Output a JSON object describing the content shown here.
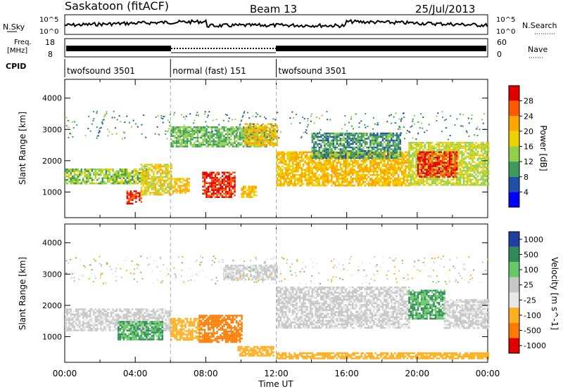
{
  "header": {
    "station": "Saskatoon (fitACF)",
    "beam": "Beam 13",
    "date": "25/Jul/2013"
  },
  "noise_panel": {
    "left_label": "N.Sky",
    "right_label": "N.Search",
    "tick_top": "10^5",
    "tick_bottom": "10^0",
    "tick_top_right": "10^5",
    "tick_bottom_right": "10^0"
  },
  "freq_panel": {
    "left_label_1": "Freq.",
    "left_label_2": "[MHz]",
    "right_label": "Nave",
    "left_ticks": [
      "18",
      "8"
    ],
    "right_ticks": [
      "60",
      "0"
    ]
  },
  "cpid": {
    "label": "CPID",
    "segments": [
      {
        "name": "twofsound 3501",
        "start_hour": 0,
        "end_hour": 6
      },
      {
        "name": "normal (fast) 151",
        "start_hour": 6,
        "end_hour": 12
      },
      {
        "name": "twofsound 3501",
        "start_hour": 12,
        "end_hour": 24
      }
    ]
  },
  "power_panel": {
    "ylabel": "Slant Range [km]",
    "cbar_label": "Power [dB]",
    "cbar_ticks": [
      "28",
      "24",
      "20",
      "16",
      "12",
      "8",
      "4"
    ],
    "cbar_colors": [
      "#e00000",
      "#ff5a00",
      "#ffa500",
      "#f0d000",
      "#8fd24a",
      "#3c9a5a",
      "#1f4fa8",
      "#0000ff"
    ]
  },
  "velocity_panel": {
    "ylabel": "Slant Range [km]",
    "cbar_label": "Velocity [m s^-1]",
    "cbar_ticks": [
      "1000",
      "500",
      "100",
      "25",
      "-25",
      "-100",
      "-500",
      "-1000"
    ],
    "cbar_colors": [
      "#2040a0",
      "#2e8b57",
      "#66c866",
      "#c8c8c8",
      "#e8e8e8",
      "#ffb020",
      "#ff7a00",
      "#e00000"
    ]
  },
  "x_axis": {
    "label": "Time UT",
    "ticks": [
      "00:00",
      "04:00",
      "08:00",
      "12:00",
      "16:00",
      "20:00",
      "00:00"
    ]
  },
  "chart_data": [
    {
      "type": "heatmap",
      "title": "Power",
      "xlabel": "Time UT",
      "ylabel": "Slant Range [km]",
      "x_range_hours": [
        0,
        24
      ],
      "ylim": [
        180,
        4600
      ],
      "y_ticks": [
        1000,
        2000,
        3000,
        4000
      ],
      "color_label": "Power [dB]",
      "color_ticks": [
        4,
        8,
        12,
        16,
        20,
        24,
        28
      ],
      "features": [
        {
          "t0": 0,
          "t1": 4.6,
          "r0": 1250,
          "r1": 1750,
          "value": 12
        },
        {
          "t0": 3.5,
          "t1": 4.3,
          "r0": 650,
          "r1": 1050,
          "value": 26
        },
        {
          "t0": 4.3,
          "t1": 6.0,
          "r0": 900,
          "r1": 1900,
          "value": 16
        },
        {
          "t0": 6.1,
          "t1": 7.0,
          "r0": 950,
          "r1": 1450,
          "value": 18
        },
        {
          "t0": 7.8,
          "t1": 9.6,
          "r0": 850,
          "r1": 1650,
          "value": 26
        },
        {
          "t0": 10.0,
          "t1": 10.8,
          "r0": 850,
          "r1": 1200,
          "value": 18
        },
        {
          "t0": 6.0,
          "t1": 11.8,
          "r0": 2450,
          "r1": 3100,
          "value": 10
        },
        {
          "t0": 10.2,
          "t1": 12.0,
          "r0": 2500,
          "r1": 3200,
          "value": 18
        },
        {
          "t0": 12.0,
          "t1": 19.5,
          "r0": 1200,
          "r1": 2300,
          "value": 18
        },
        {
          "t0": 19.5,
          "t1": 24.0,
          "r0": 1200,
          "r1": 2600,
          "value": 14
        },
        {
          "t0": 20.0,
          "t1": 22.2,
          "r0": 1500,
          "r1": 2300,
          "value": 26
        },
        {
          "t0": 14.0,
          "t1": 19.0,
          "r0": 2100,
          "r1": 2900,
          "value": 8
        }
      ]
    },
    {
      "type": "heatmap",
      "title": "Velocity",
      "xlabel": "Time UT",
      "ylabel": "Slant Range [km]",
      "x_range_hours": [
        0,
        24
      ],
      "ylim": [
        180,
        4600
      ],
      "y_ticks": [
        1000,
        2000,
        3000,
        4000
      ],
      "color_label": "Velocity [m s^-1]",
      "color_ticks": [
        -1000,
        -500,
        -100,
        -25,
        25,
        100,
        500,
        1000
      ],
      "features": [
        {
          "t0": 0,
          "t1": 6.0,
          "r0": 1200,
          "r1": 1900,
          "value": 10
        },
        {
          "t0": 3.0,
          "t1": 5.5,
          "r0": 900,
          "r1": 1500,
          "value": 300
        },
        {
          "t0": 6.0,
          "t1": 7.6,
          "r0": 900,
          "r1": 1600,
          "value": -150
        },
        {
          "t0": 7.6,
          "t1": 10.0,
          "r0": 850,
          "r1": 1700,
          "value": -500
        },
        {
          "t0": 9.8,
          "t1": 11.8,
          "r0": 400,
          "r1": 700,
          "value": -150
        },
        {
          "t0": 9.0,
          "t1": 12.0,
          "r0": 2800,
          "r1": 3300,
          "value": 10
        },
        {
          "t0": 12.0,
          "t1": 19.5,
          "r0": 1300,
          "r1": 2600,
          "value": 10
        },
        {
          "t0": 19.5,
          "t1": 21.5,
          "r0": 1600,
          "r1": 2500,
          "value": 300
        },
        {
          "t0": 21.5,
          "t1": 24.0,
          "r0": 1300,
          "r1": 2200,
          "value": 10
        },
        {
          "t0": 12.0,
          "t1": 24.0,
          "r0": 300,
          "r1": 500,
          "value": -100
        }
      ]
    }
  ]
}
